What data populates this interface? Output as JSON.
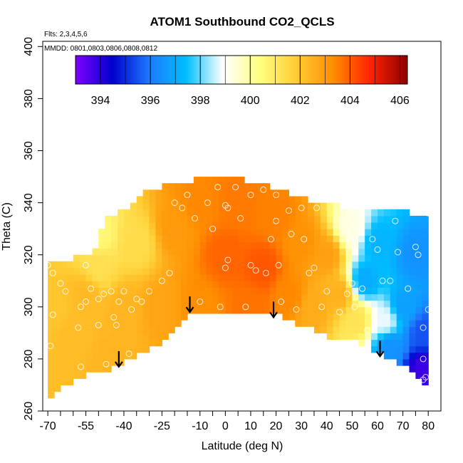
{
  "chart_data": {
    "type": "heatmap",
    "title": "ATOM1 Southbound CO2_QCLS",
    "annotations": [
      "Flts: 2,3,4,5,6",
      "MMDD: 0801,0803,0806,0808,0812"
    ],
    "xlabel": "Latitude (deg N)",
    "ylabel": "Theta (C)",
    "xlim": [
      -72,
      85
    ],
    "ylim": [
      260,
      402
    ],
    "x_ticks": [
      -70,
      -55,
      -40,
      -25,
      -10,
      0,
      10,
      20,
      30,
      40,
      50,
      60,
      70,
      80
    ],
    "y_ticks": [
      260,
      280,
      300,
      320,
      340,
      360,
      380,
      400
    ],
    "colorbar": {
      "range": [
        393,
        406.3
      ],
      "ticks": [
        394,
        396,
        398,
        400,
        402,
        404,
        406
      ],
      "colors": [
        "#7f00ff",
        "#0000cd",
        "#1e78ff",
        "#00bfff",
        "#ffffff",
        "#ffff80",
        "#ffcc33",
        "#ff8c00",
        "#ff2200",
        "#8b0000"
      ]
    },
    "domain_top_theta": [
      [
        -70,
        315
      ],
      [
        -52,
        320
      ],
      [
        -48,
        332
      ],
      [
        -37,
        337
      ],
      [
        -32,
        343
      ],
      [
        -25,
        345
      ],
      [
        -15,
        347
      ],
      [
        -5,
        349
      ],
      [
        5,
        348
      ],
      [
        15,
        346
      ],
      [
        25,
        343
      ],
      [
        35,
        339
      ],
      [
        45,
        338
      ],
      [
        50,
        335
      ],
      [
        60,
        337
      ],
      [
        70,
        336
      ],
      [
        80,
        333
      ]
    ],
    "domain_bottom_theta": [
      [
        -70,
        265
      ],
      [
        -65,
        270
      ],
      [
        -55,
        275
      ],
      [
        -45,
        277
      ],
      [
        -38,
        281
      ],
      [
        -30,
        285
      ],
      [
        -22,
        290
      ],
      [
        -15,
        297
      ],
      [
        -10,
        300
      ],
      [
        0,
        299
      ],
      [
        10,
        299
      ],
      [
        20,
        298
      ],
      [
        30,
        294
      ],
      [
        40,
        290
      ],
      [
        50,
        288
      ],
      [
        60,
        284
      ],
      [
        70,
        279
      ],
      [
        78,
        271
      ]
    ],
    "co2_anchors": [
      [
        -68,
        300,
        402.0
      ],
      [
        -60,
        290,
        402.2
      ],
      [
        -55,
        305,
        402.3
      ],
      [
        -50,
        315,
        401.3
      ],
      [
        -50,
        328,
        400.6
      ],
      [
        -45,
        282,
        402.4
      ],
      [
        -40,
        300,
        402.4
      ],
      [
        -35,
        325,
        401.4
      ],
      [
        -25,
        300,
        402.8
      ],
      [
        -20,
        330,
        403.0
      ],
      [
        -10,
        300,
        403.3
      ],
      [
        -10,
        340,
        403.4
      ],
      [
        0,
        320,
        403.9
      ],
      [
        5,
        340,
        403.6
      ],
      [
        10,
        300,
        403.7
      ],
      [
        15,
        315,
        404.1
      ],
      [
        20,
        335,
        403.5
      ],
      [
        25,
        305,
        403.4
      ],
      [
        30,
        325,
        403.2
      ],
      [
        35,
        300,
        402.6
      ],
      [
        40,
        320,
        402.9
      ],
      [
        45,
        305,
        402.5
      ],
      [
        50,
        330,
        399.2
      ],
      [
        52,
        295,
        401.2
      ],
      [
        55,
        310,
        397.0
      ],
      [
        60,
        325,
        397.2
      ],
      [
        63,
        295,
        398.8
      ],
      [
        65,
        285,
        396.5
      ],
      [
        70,
        300,
        396.8
      ],
      [
        75,
        320,
        396.5
      ],
      [
        78,
        290,
        395.5
      ],
      [
        78,
        276,
        393.8
      ]
    ],
    "sample_points": [
      [
        -70,
        316
      ],
      [
        -68,
        313
      ],
      [
        -69,
        285
      ],
      [
        -68,
        297
      ],
      [
        -65,
        309
      ],
      [
        -63,
        306
      ],
      [
        -58,
        292
      ],
      [
        -57,
        277
      ],
      [
        -57,
        300
      ],
      [
        -55,
        302
      ],
      [
        -55,
        316
      ],
      [
        -53,
        307
      ],
      [
        -50,
        303
      ],
      [
        -48,
        305
      ],
      [
        -50,
        293
      ],
      [
        -47,
        278
      ],
      [
        -45,
        306
      ],
      [
        -44,
        296
      ],
      [
        -43,
        293
      ],
      [
        -42,
        302
      ],
      [
        -40,
        306
      ],
      [
        -38,
        282
      ],
      [
        -37,
        299
      ],
      [
        -35,
        303
      ],
      [
        -33,
        302
      ],
      [
        -30,
        306
      ],
      [
        -25,
        310
      ],
      [
        -22,
        313
      ],
      [
        -20,
        340
      ],
      [
        -17,
        338
      ],
      [
        -15,
        343
      ],
      [
        -12,
        334
      ],
      [
        -10,
        302
      ],
      [
        -7,
        340
      ],
      [
        -5,
        330
      ],
      [
        -3,
        346
      ],
      [
        0,
        339
      ],
      [
        1,
        338
      ],
      [
        1,
        318
      ],
      [
        0,
        315
      ],
      [
        -2,
        300
      ],
      [
        4,
        346
      ],
      [
        6,
        334
      ],
      [
        8,
        300
      ],
      [
        10,
        343
      ],
      [
        10,
        316
      ],
      [
        12,
        314
      ],
      [
        15,
        345
      ],
      [
        16,
        313
      ],
      [
        18,
        326
      ],
      [
        20,
        343
      ],
      [
        20,
        333
      ],
      [
        21,
        316
      ],
      [
        22,
        302
      ],
      [
        25,
        337
      ],
      [
        26,
        328
      ],
      [
        28,
        299
      ],
      [
        30,
        338
      ],
      [
        31,
        326
      ],
      [
        33,
        313
      ],
      [
        35,
        315
      ],
      [
        36,
        338
      ],
      [
        38,
        300
      ],
      [
        40,
        306
      ],
      [
        42,
        343
      ],
      [
        45,
        298
      ],
      [
        48,
        305
      ],
      [
        50,
        309
      ],
      [
        51,
        300
      ],
      [
        54,
        307
      ],
      [
        56,
        291
      ],
      [
        58,
        326
      ],
      [
        60,
        322
      ],
      [
        62,
        310
      ],
      [
        65,
        310
      ],
      [
        67,
        333
      ],
      [
        68,
        321
      ],
      [
        72,
        307
      ],
      [
        75,
        323
      ],
      [
        76,
        320
      ],
      [
        78,
        280
      ],
      [
        78,
        272
      ],
      [
        79,
        273
      ],
      [
        78,
        292
      ],
      [
        80,
        299
      ],
      [
        80,
        336
      ],
      [
        79,
        343
      ]
    ],
    "arrows": [
      [
        -42,
        282
      ],
      [
        -14,
        303
      ],
      [
        19,
        301
      ],
      [
        61,
        286
      ]
    ]
  }
}
